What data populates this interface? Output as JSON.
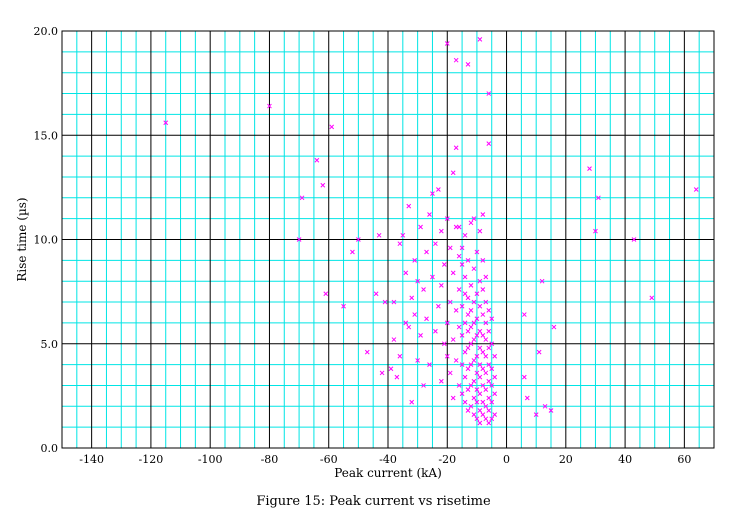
{
  "chart_data": {
    "type": "scatter",
    "title": "",
    "xlabel": "Peak current (kA)",
    "ylabel": "Rise time (µs)",
    "xlim": [
      -150,
      70
    ],
    "ylim": [
      0,
      20
    ],
    "xticks": [
      -140,
      -120,
      -100,
      -80,
      -60,
      -40,
      -20,
      0,
      20,
      40,
      60
    ],
    "yticks": [
      0,
      5,
      10,
      15,
      20
    ],
    "ytick_labels": [
      "0.0",
      "5.0",
      "10.0",
      "15.0",
      "20.0"
    ],
    "grid": true,
    "marker": "x",
    "colors": {
      "points": "#ff00ff",
      "minor_grid": "#00e5e5",
      "major_grid": "#000000"
    },
    "points": [
      [
        -115,
        15.6
      ],
      [
        -80,
        16.4
      ],
      [
        -70,
        10.0
      ],
      [
        -69,
        12.0
      ],
      [
        -64,
        13.8
      ],
      [
        -62,
        12.6
      ],
      [
        -61,
        7.4
      ],
      [
        -59,
        15.4
      ],
      [
        -55,
        6.8
      ],
      [
        -52,
        9.4
      ],
      [
        -50,
        10.0
      ],
      [
        -47,
        4.6
      ],
      [
        -44,
        7.4
      ],
      [
        -43,
        10.2
      ],
      [
        -42,
        3.6
      ],
      [
        -41,
        7.0
      ],
      [
        -39,
        3.8
      ],
      [
        -38,
        5.2
      ],
      [
        -38,
        7.0
      ],
      [
        -37,
        3.4
      ],
      [
        -36,
        4.4
      ],
      [
        -36,
        9.8
      ],
      [
        -35,
        10.2
      ],
      [
        -34,
        6.0
      ],
      [
        -34,
        8.4
      ],
      [
        -33,
        5.8
      ],
      [
        -33,
        11.6
      ],
      [
        -32,
        2.2
      ],
      [
        -32,
        7.2
      ],
      [
        -31,
        6.4
      ],
      [
        -31,
        9.0
      ],
      [
        -30,
        4.2
      ],
      [
        -30,
        8.0
      ],
      [
        -29,
        5.4
      ],
      [
        -29,
        10.6
      ],
      [
        -28,
        3.0
      ],
      [
        -28,
        7.6
      ],
      [
        -27,
        6.2
      ],
      [
        -27,
        9.4
      ],
      [
        -26,
        4.0
      ],
      [
        -26,
        11.2
      ],
      [
        -25,
        8.2
      ],
      [
        -25,
        12.2
      ],
      [
        -24,
        5.6
      ],
      [
        -24,
        9.8
      ],
      [
        -23,
        6.8
      ],
      [
        -23,
        12.4
      ],
      [
        -22,
        3.2
      ],
      [
        -22,
        7.8
      ],
      [
        -22,
        10.4
      ],
      [
        -21,
        5.0
      ],
      [
        -21,
        8.8
      ],
      [
        -20,
        4.4
      ],
      [
        -20,
        11.0
      ],
      [
        -20,
        6.0
      ],
      [
        -19,
        3.6
      ],
      [
        -19,
        7.0
      ],
      [
        -19,
        9.6
      ],
      [
        -18,
        2.4
      ],
      [
        -18,
        5.2
      ],
      [
        -18,
        8.4
      ],
      [
        -18,
        13.2
      ],
      [
        -17,
        4.2
      ],
      [
        -17,
        6.6
      ],
      [
        -17,
        10.6
      ],
      [
        -17,
        14.4
      ],
      [
        -16,
        3.0
      ],
      [
        -16,
        5.8
      ],
      [
        -16,
        7.6
      ],
      [
        -16,
        9.2
      ],
      [
        -16,
        10.6
      ],
      [
        -15,
        2.6
      ],
      [
        -15,
        4.0
      ],
      [
        -15,
        5.4
      ],
      [
        -15,
        6.8
      ],
      [
        -15,
        8.8
      ],
      [
        -15,
        9.6
      ],
      [
        -14,
        2.2
      ],
      [
        -14,
        3.4
      ],
      [
        -14,
        4.6
      ],
      [
        -14,
        6.0
      ],
      [
        -14,
        7.4
      ],
      [
        -14,
        8.2
      ],
      [
        -14,
        10.2
      ],
      [
        -13,
        1.8
      ],
      [
        -13,
        2.8
      ],
      [
        -13,
        3.8
      ],
      [
        -13,
        4.8
      ],
      [
        -13,
        5.6
      ],
      [
        -13,
        6.4
      ],
      [
        -13,
        7.2
      ],
      [
        -13,
        9.0
      ],
      [
        -12,
        2.0
      ],
      [
        -12,
        3.0
      ],
      [
        -12,
        4.0
      ],
      [
        -12,
        5.0
      ],
      [
        -12,
        5.8
      ],
      [
        -12,
        6.6
      ],
      [
        -12,
        7.8
      ],
      [
        -12,
        10.8
      ],
      [
        -11,
        1.6
      ],
      [
        -11,
        2.4
      ],
      [
        -11,
        3.2
      ],
      [
        -11,
        4.2
      ],
      [
        -11,
        5.2
      ],
      [
        -11,
        6.0
      ],
      [
        -11,
        7.0
      ],
      [
        -11,
        8.6
      ],
      [
        -11,
        11.0
      ],
      [
        -10,
        1.4
      ],
      [
        -10,
        2.2
      ],
      [
        -10,
        2.8
      ],
      [
        -10,
        3.6
      ],
      [
        -10,
        4.4
      ],
      [
        -10,
        5.4
      ],
      [
        -10,
        6.2
      ],
      [
        -10,
        7.4
      ],
      [
        -10,
        9.4
      ],
      [
        -9,
        1.2
      ],
      [
        -9,
        1.8
      ],
      [
        -9,
        2.6
      ],
      [
        -9,
        3.4
      ],
      [
        -9,
        4.0
      ],
      [
        -9,
        4.8
      ],
      [
        -9,
        5.6
      ],
      [
        -9,
        6.8
      ],
      [
        -9,
        8.0
      ],
      [
        -9,
        10.4
      ],
      [
        -8,
        1.6
      ],
      [
        -8,
        2.2
      ],
      [
        -8,
        3.0
      ],
      [
        -8,
        3.8
      ],
      [
        -8,
        4.6
      ],
      [
        -8,
        5.4
      ],
      [
        -8,
        6.4
      ],
      [
        -8,
        7.6
      ],
      [
        -8,
        9.0
      ],
      [
        -8,
        11.2
      ],
      [
        -7,
        1.4
      ],
      [
        -7,
        2.0
      ],
      [
        -7,
        2.8
      ],
      [
        -7,
        3.6
      ],
      [
        -7,
        4.4
      ],
      [
        -7,
        5.2
      ],
      [
        -7,
        6.0
      ],
      [
        -7,
        7.0
      ],
      [
        -7,
        8.2
      ],
      [
        -6,
        1.2
      ],
      [
        -6,
        1.8
      ],
      [
        -6,
        2.4
      ],
      [
        -6,
        3.2
      ],
      [
        -6,
        4.0
      ],
      [
        -6,
        4.8
      ],
      [
        -6,
        5.6
      ],
      [
        -6,
        6.6
      ],
      [
        -6,
        14.6
      ],
      [
        -6,
        17.0
      ],
      [
        -5,
        1.4
      ],
      [
        -5,
        2.2
      ],
      [
        -5,
        3.0
      ],
      [
        -5,
        3.8
      ],
      [
        -5,
        5.0
      ],
      [
        -5,
        6.2
      ],
      [
        -4,
        1.6
      ],
      [
        -4,
        2.6
      ],
      [
        -4,
        3.4
      ],
      [
        -4,
        4.4
      ],
      [
        -20,
        19.4
      ],
      [
        -17,
        18.6
      ],
      [
        -13,
        18.4
      ],
      [
        -9,
        19.6
      ],
      [
        6,
        3.4
      ],
      [
        6,
        6.4
      ],
      [
        7,
        2.4
      ],
      [
        10,
        1.6
      ],
      [
        11,
        4.6
      ],
      [
        12,
        8.0
      ],
      [
        13,
        2.0
      ],
      [
        15,
        1.8
      ],
      [
        16,
        5.8
      ],
      [
        28,
        13.4
      ],
      [
        30,
        10.4
      ],
      [
        31,
        12.0
      ],
      [
        43,
        10.0
      ],
      [
        49,
        7.2
      ],
      [
        64,
        12.4
      ]
    ]
  },
  "figure": {
    "caption": "Figure 15: Peak current vs risetime"
  }
}
